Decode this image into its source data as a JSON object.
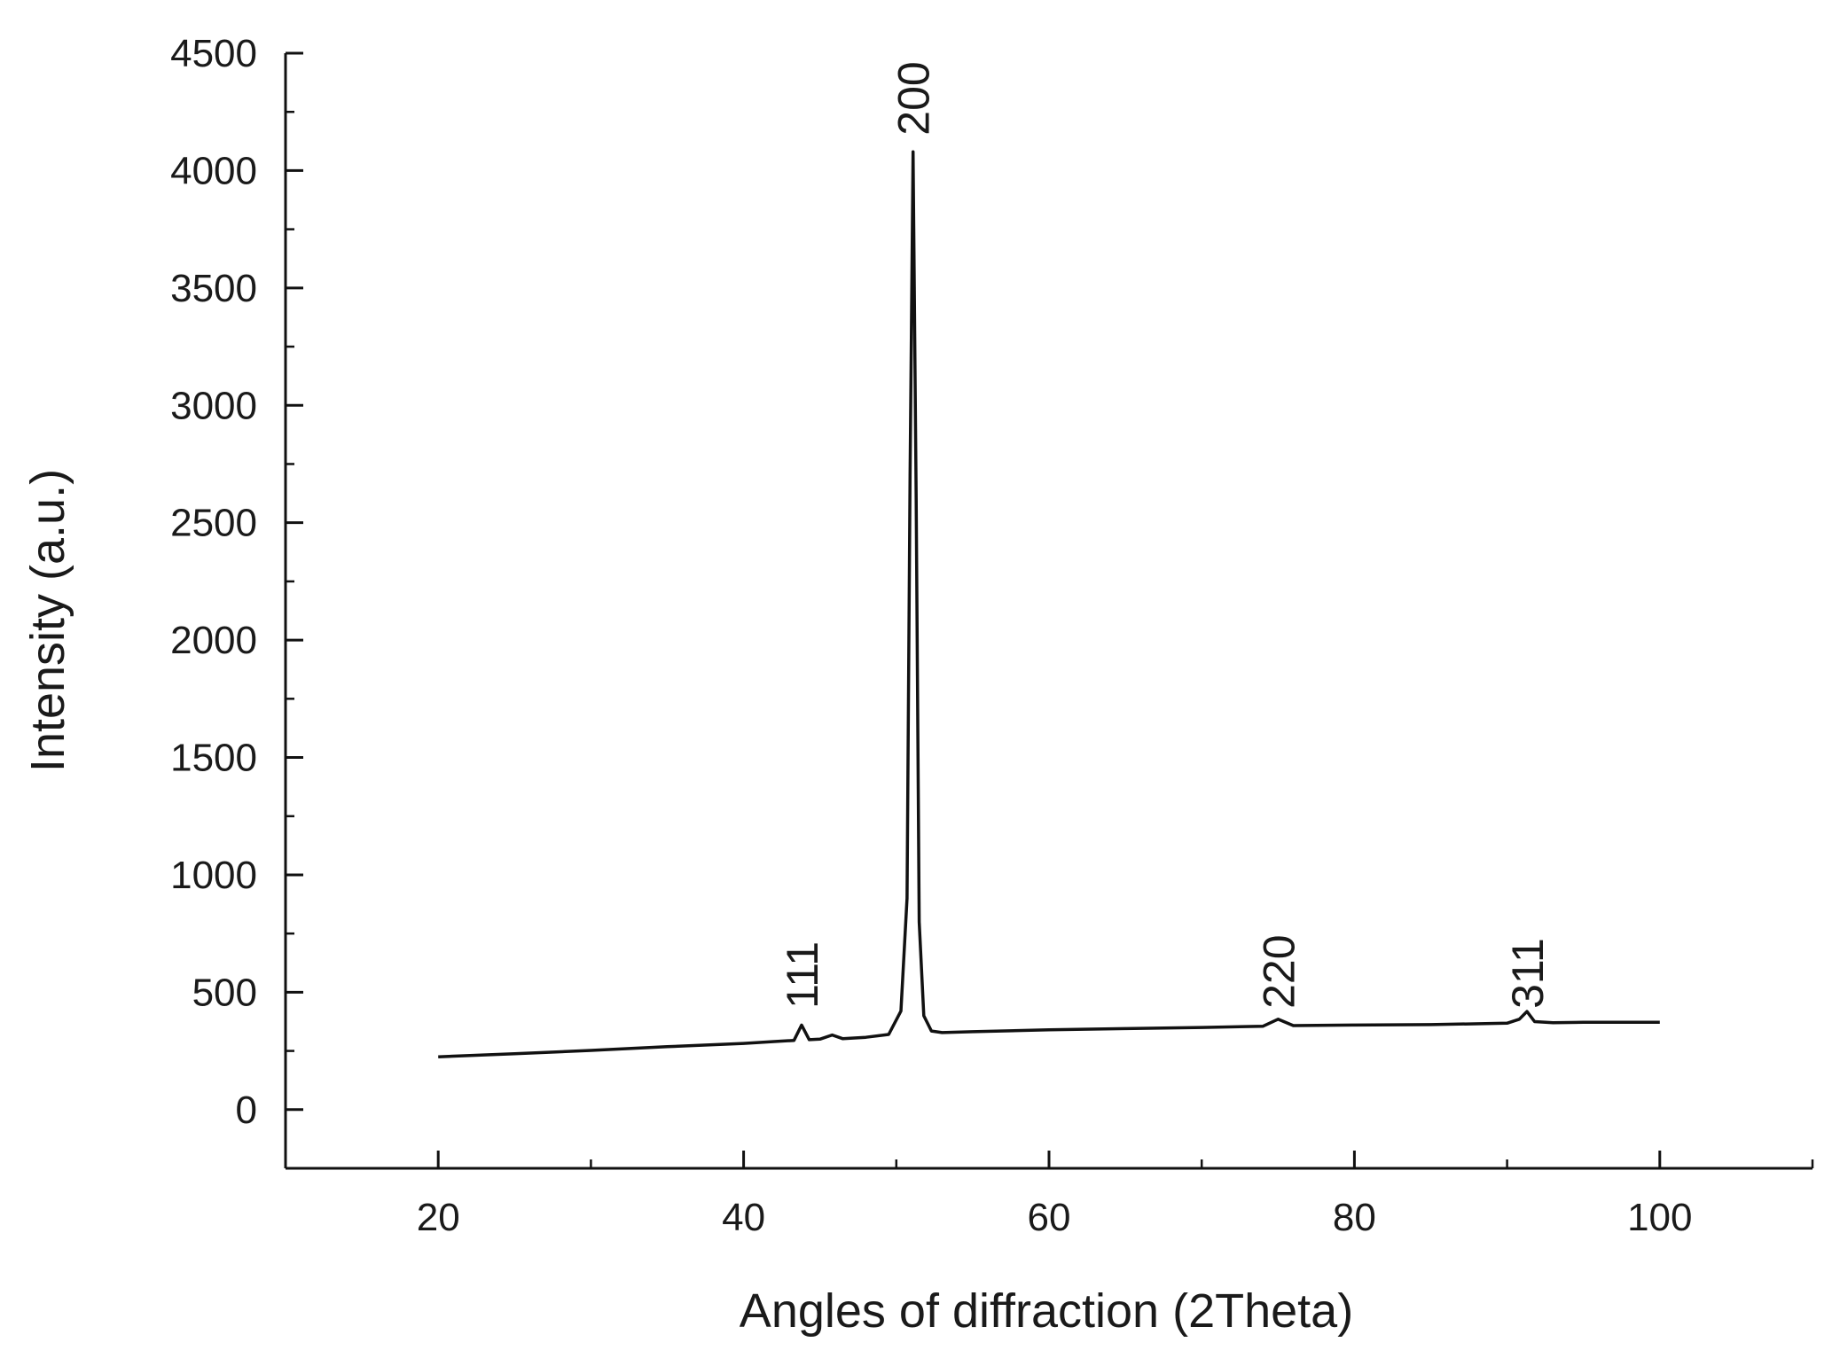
{
  "chart_data": {
    "type": "line",
    "title": "",
    "xlabel": "Angles of diffraction (2Theta)",
    "ylabel": "Intensity (a.u.)",
    "xlim": [
      10,
      110
    ],
    "ylim": [
      -250,
      4500
    ],
    "x_ticks": [
      20,
      40,
      60,
      80,
      100
    ],
    "y_ticks": [
      0,
      500,
      1000,
      1500,
      2000,
      2500,
      3000,
      3500,
      4000,
      4500
    ],
    "x_minor_step": 10,
    "y_minor_step": 250,
    "grid": false,
    "legend": "none",
    "line_color": "#111111",
    "series": [
      {
        "x": [
          20,
          25,
          30,
          35,
          40,
          42,
          43.3,
          43.8,
          44.3,
          45,
          45.8,
          46.5,
          48,
          49.5,
          50.3,
          50.7,
          50.9,
          51.1,
          51.3,
          51.5,
          51.8,
          52.3,
          53,
          55,
          60,
          65,
          70,
          74,
          75,
          76,
          80,
          85,
          90,
          90.8,
          91.3,
          91.8,
          93,
          95,
          100
        ],
        "y": [
          225,
          238,
          252,
          268,
          282,
          290,
          295,
          360,
          298,
          300,
          318,
          302,
          308,
          320,
          420,
          900,
          2700,
          4080,
          2600,
          800,
          400,
          335,
          328,
          332,
          340,
          345,
          350,
          355,
          385,
          358,
          360,
          362,
          368,
          385,
          418,
          375,
          370,
          372,
          372
        ]
      }
    ],
    "annotations": [
      {
        "text": "111",
        "x": 43.8,
        "y": 430
      },
      {
        "text": "200",
        "x": 51.1,
        "y": 4150
      },
      {
        "text": "220",
        "x": 75,
        "y": 430
      },
      {
        "text": "311",
        "x": 91.3,
        "y": 430
      }
    ]
  }
}
